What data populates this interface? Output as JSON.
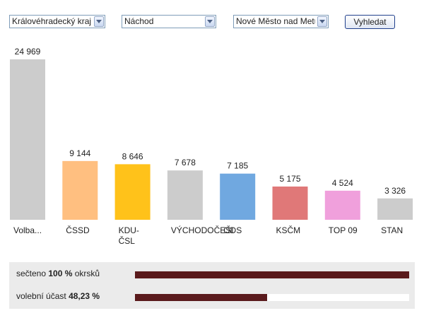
{
  "filters": {
    "region": "Královéhradecký kraj",
    "district": "Náchod",
    "municipality": "Nové Město nad Metují",
    "search_button": "Vyhledat"
  },
  "chart_data": {
    "type": "bar",
    "categories": [
      "Volba...",
      "ČSSD",
      "KDU-\nČSL",
      "VÝCHODOČEŠI",
      "ODS",
      "KSČM",
      "TOP 09",
      "STAN"
    ],
    "values": [
      24969,
      9144,
      8646,
      7678,
      7185,
      5175,
      4524,
      3326
    ],
    "value_labels": [
      "24 969",
      "9 144",
      "8 646",
      "7 678",
      "7 185",
      "5 175",
      "4 524",
      "3 326"
    ],
    "colors": [
      "#cccccc",
      "#ffbf80",
      "#ffc21a",
      "#cccccc",
      "#70a8e0",
      "#e07878",
      "#f0a0dc",
      "#cccccc"
    ],
    "ylim": [
      0,
      24969
    ],
    "grid": false,
    "legend": "none"
  },
  "status": {
    "counted": {
      "prefix": "sečteno",
      "value": "100 %",
      "suffix": "okrsků",
      "fraction": 1.0
    },
    "turnout": {
      "prefix": "volební účast",
      "value": "48,23 %",
      "fraction": 0.4823
    },
    "bar_color": "#5a1a1c"
  },
  "icons": {
    "dropdown": "chevron-down-icon"
  }
}
